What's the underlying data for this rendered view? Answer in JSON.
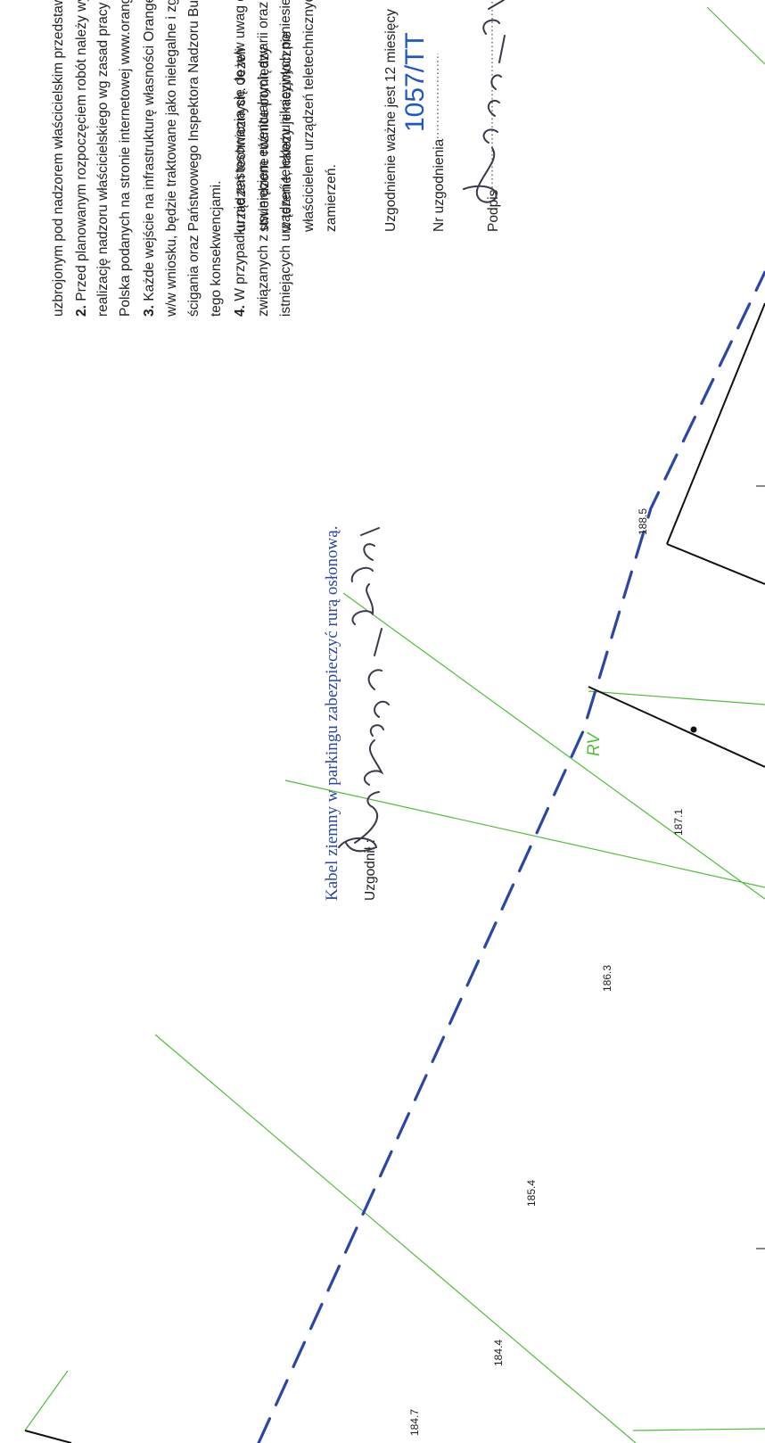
{
  "notes": {
    "line1": "uzbrojonym pod nadzorem właścicielskim przedstawiciela Orange Polska.",
    "item2_num": "2.",
    "item2_line1": " Przed planowanym rozpoczęciem robót należy wystąpić z wnioskiem o",
    "item2_line2": "realizację nadzoru właścicielskiego wg zasad pracy na infrastrukturze Orange",
    "item2_line3": "Polska podanych na stronie internetowej www.orange.pl/wnioseknadzor",
    "item3_num": "3.",
    "item3_line1": " Każde wejście na infrastrukturę własności Orange Polska bez złożonego",
    "item3_line2": "w/w wniosku, będzie traktowane jako nielegalne i zgłaszane do organów",
    "item3_line3": "ścigania oraz Państwowego Inspektora Nadzoru Budowlanego z wszelkimi",
    "item3_line4": "tego konsekwencjami.",
    "item4_num": "4.",
    "item4_line1": " W przypadku nie zastosowania się do w/w uwag całość kosztów",
    "item4_line2": "związanych z usunięciem ewentualnych awarii oraz zabezpieczeniem",
    "item4_line3": "istniejących urządzeń telekomunikacyjnych poniesie Inwestor (Wykonawca)."
  },
  "annotation": {
    "text": "Kabel ziemny w parkingu zabezpieczyć rurą osłonową.",
    "agreed_label": "Uzgodnił :"
  },
  "right_notes": {
    "line1": "urządzeń technicznych. Jeżeli",
    "line2": "stwierdzone różnice pomiędzy",
    "line3": "w terenie, należy je niezwłocznie",
    "line4": "właścicielem urządzeń teletechnicznych",
    "line5": "zamierzeń.",
    "validity": "Uzgodnienie ważne jest 12 miesięcy",
    "number_label": "Nr uzgodnienia",
    "number_value": "1057/TT",
    "signature_label": "Podpis"
  },
  "map": {
    "elevations": [
      "184.7",
      "184.4",
      "185.4",
      "186.3",
      "187.1",
      "188.5"
    ],
    "zone_label": "RV"
  },
  "colors": {
    "cable": "#2b47a6",
    "boundary": "#4fbf3a",
    "accent_blue": "#1f56c7",
    "annotation": "#2b47a6",
    "building": "#111111"
  }
}
